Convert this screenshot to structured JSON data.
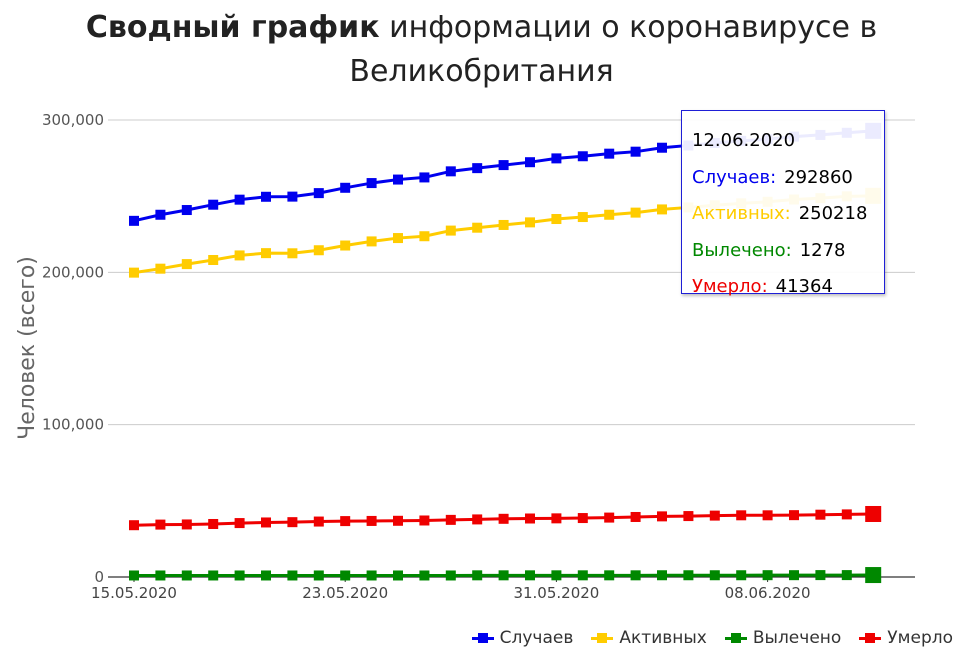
{
  "title": {
    "bold": "Сводный график",
    "line1_rest": "информации о коронавирусе в",
    "line2": "Великобритания"
  },
  "chart_data": {
    "type": "line",
    "title": "Сводный график информации о коронавирусе в Великобритания",
    "xlabel": "",
    "ylabel": "Человек (всего)",
    "ylim": [
      0,
      300000
    ],
    "yticks": [
      "0",
      "100,000",
      "200,000",
      "300,000"
    ],
    "x": [
      "15.05.2020",
      "16.05.2020",
      "17.05.2020",
      "18.05.2020",
      "19.05.2020",
      "20.05.2020",
      "21.05.2020",
      "22.05.2020",
      "23.05.2020",
      "24.05.2020",
      "25.05.2020",
      "26.05.2020",
      "27.05.2020",
      "28.05.2020",
      "29.05.2020",
      "30.05.2020",
      "31.05.2020",
      "01.06.2020",
      "02.06.2020",
      "03.06.2020",
      "04.06.2020",
      "05.06.2020",
      "06.06.2020",
      "07.06.2020",
      "08.06.2020",
      "09.06.2020",
      "10.06.2020",
      "11.06.2020",
      "12.06.2020"
    ],
    "xtick_labels": [
      "15.05.2020",
      "23.05.2020",
      "31.05.2020",
      "08.06.2020"
    ],
    "series": [
      {
        "name": "Случаев",
        "color": "#0000ee",
        "values": [
          233800,
          237800,
          240900,
          244400,
          247700,
          249600,
          249700,
          252000,
          255500,
          258600,
          260900,
          262300,
          266300,
          268400,
          270400,
          272300,
          274800,
          276200,
          277900,
          279200,
          281800,
          283300,
          284900,
          286300,
          287400,
          289100,
          290200,
          291600,
          292860
        ]
      },
      {
        "name": "Активных",
        "color": "#ffcc00",
        "values": [
          199800,
          202400,
          205400,
          208100,
          211100,
          212600,
          212500,
          214500,
          217600,
          220300,
          222500,
          223700,
          227400,
          229300,
          231100,
          232800,
          235000,
          236300,
          237800,
          239200,
          241300,
          242600,
          244000,
          245300,
          246300,
          247800,
          248700,
          249900,
          250218
        ]
      },
      {
        "name": "Вылечено",
        "color": "#008800",
        "values": [
          1000,
          1000,
          1000,
          1000,
          1000,
          1000,
          1000,
          1000,
          1000,
          1000,
          1000,
          1000,
          1000,
          1100,
          1100,
          1100,
          1100,
          1100,
          1100,
          1100,
          1150,
          1150,
          1150,
          1150,
          1200,
          1200,
          1250,
          1250,
          1278
        ]
      },
      {
        "name": "Умерло",
        "color": "#ee0000",
        "values": [
          34000,
          34400,
          34500,
          34800,
          35400,
          35800,
          36000,
          36400,
          36700,
          36800,
          36900,
          37100,
          37500,
          37800,
          38200,
          38400,
          38500,
          38700,
          39000,
          39400,
          39800,
          40000,
          40300,
          40500,
          40500,
          40600,
          40900,
          41100,
          41364
        ]
      }
    ],
    "grid": true,
    "legend": "bottom-right",
    "tooltip": {
      "date": "12.06.2020",
      "rows": [
        {
          "label": "Случаев:",
          "value": "292860",
          "color": "#0000ee"
        },
        {
          "label": "Активных:",
          "value": "250218",
          "color": "#ffcc00"
        },
        {
          "label": "Вылечено:",
          "value": "1278",
          "color": "#008800"
        },
        {
          "label": "Умерло:",
          "value": "41364",
          "color": "#ee0000"
        }
      ]
    }
  }
}
